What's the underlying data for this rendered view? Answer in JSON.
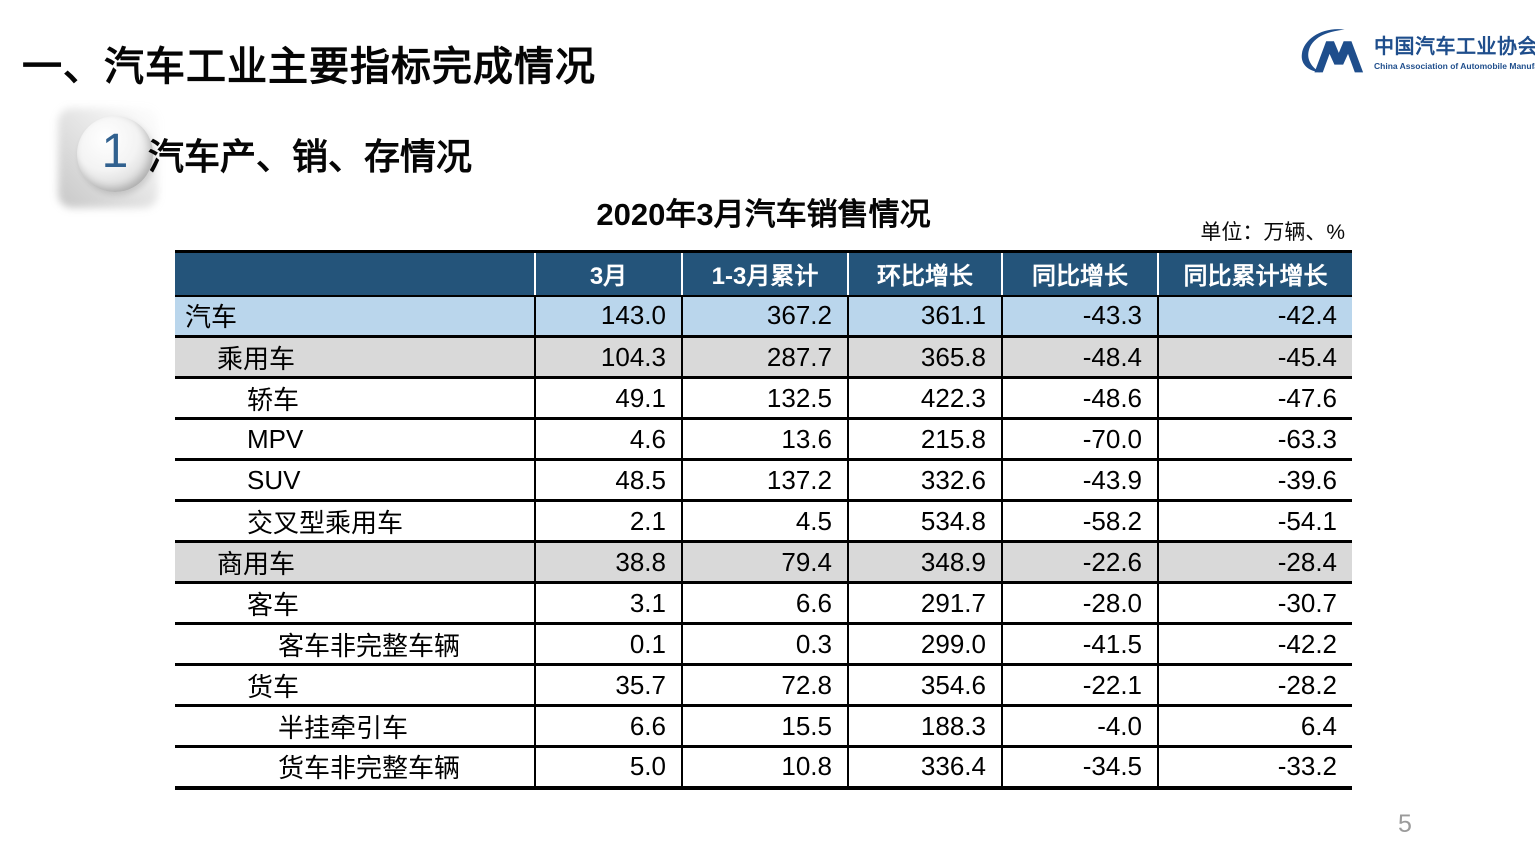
{
  "page": {
    "title": "一、汽车工业主要指标完成情况",
    "page_number": "5"
  },
  "logo": {
    "name_cn": "中国汽车工业协会",
    "name_en": "China Association of Automobile Manufacturers",
    "brand_color": "#1F4E8C"
  },
  "section": {
    "number": "1",
    "title": "汽车产、销、存情况"
  },
  "table": {
    "title": "2020年3月汽车销售情况",
    "unit_label": "单位：万辆、%",
    "colors": {
      "header_bg": "#24547A",
      "highlight_row_bg": "#BAD6EC",
      "subtotal_row_bg": "#D9D9D9"
    },
    "columns": [
      "",
      "3月",
      "1-3月累计",
      "环比增长",
      "同比增长",
      "同比累计增长"
    ],
    "rows": [
      {
        "label": "汽车",
        "indent": 0,
        "style": "highlight",
        "values": [
          "143.0",
          "367.2",
          "361.1",
          "-43.3",
          "-42.4"
        ]
      },
      {
        "label": "乘用车",
        "indent": 1,
        "style": "subtotal",
        "values": [
          "104.3",
          "287.7",
          "365.8",
          "-48.4",
          "-45.4"
        ]
      },
      {
        "label": "轿车",
        "indent": 2,
        "style": "normal",
        "values": [
          "49.1",
          "132.5",
          "422.3",
          "-48.6",
          "-47.6"
        ]
      },
      {
        "label": "MPV",
        "indent": 2,
        "style": "normal",
        "values": [
          "4.6",
          "13.6",
          "215.8",
          "-70.0",
          "-63.3"
        ]
      },
      {
        "label": "SUV",
        "indent": 2,
        "style": "normal",
        "values": [
          "48.5",
          "137.2",
          "332.6",
          "-43.9",
          "-39.6"
        ]
      },
      {
        "label": "交叉型乘用车",
        "indent": 2,
        "style": "normal",
        "values": [
          "2.1",
          "4.5",
          "534.8",
          "-58.2",
          "-54.1"
        ]
      },
      {
        "label": "商用车",
        "indent": 1,
        "style": "subtotal",
        "values": [
          "38.8",
          "79.4",
          "348.9",
          "-22.6",
          "-28.4"
        ]
      },
      {
        "label": "客车",
        "indent": 2,
        "style": "normal",
        "values": [
          "3.1",
          "6.6",
          "291.7",
          "-28.0",
          "-30.7"
        ]
      },
      {
        "label": "客车非完整车辆",
        "indent": 3,
        "style": "normal",
        "values": [
          "0.1",
          "0.3",
          "299.0",
          "-41.5",
          "-42.2"
        ]
      },
      {
        "label": "货车",
        "indent": 2,
        "style": "normal",
        "values": [
          "35.7",
          "72.8",
          "354.6",
          "-22.1",
          "-28.2"
        ]
      },
      {
        "label": "半挂牵引车",
        "indent": 3,
        "style": "normal",
        "values": [
          "6.6",
          "15.5",
          "188.3",
          "-4.0",
          "6.4"
        ]
      },
      {
        "label": "货车非完整车辆",
        "indent": 3,
        "style": "normal",
        "values": [
          "5.0",
          "10.8",
          "336.4",
          "-34.5",
          "-33.2"
        ]
      }
    ]
  }
}
